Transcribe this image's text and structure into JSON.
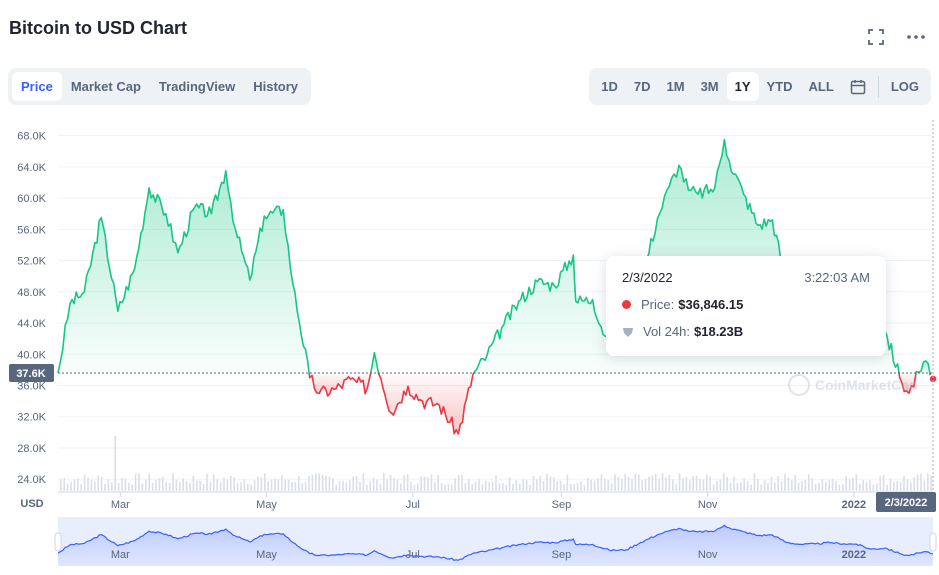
{
  "header": {
    "title": "Bitcoin to USD Chart"
  },
  "tabs": [
    {
      "label": "Price",
      "active": true
    },
    {
      "label": "Market Cap",
      "active": false
    },
    {
      "label": "TradingView",
      "active": false
    },
    {
      "label": "History",
      "active": false
    }
  ],
  "ranges": [
    {
      "label": "1D",
      "active": false
    },
    {
      "label": "7D",
      "active": false
    },
    {
      "label": "1M",
      "active": false
    },
    {
      "label": "3M",
      "active": false
    },
    {
      "label": "1Y",
      "active": true
    },
    {
      "label": "YTD",
      "active": false
    },
    {
      "label": "ALL",
      "active": false
    }
  ],
  "log_label": "LOG",
  "tooltip": {
    "date": "2/3/2022",
    "time": "3:22:03 AM",
    "price_label": "Price:",
    "price_value": "$36,846.15",
    "vol_label": "Vol 24h:",
    "vol_value": "$18.23B"
  },
  "watermark": "CoinMarketCap",
  "colors": {
    "up": "#16c784",
    "down": "#ea3943",
    "accent": "#3861fb",
    "grid": "#eff2f5"
  },
  "chart_data": {
    "type": "area",
    "y_axis_title": "USD",
    "y_ticks": [
      24000,
      28000,
      32000,
      36000,
      40000,
      44000,
      48000,
      52000,
      56000,
      60000,
      64000,
      68000
    ],
    "y_tick_labels": [
      "24.0K",
      "28.0K",
      "32.0K",
      "36.0K",
      "40.0K",
      "44.0K",
      "48.0K",
      "52.0K",
      "56.0K",
      "60.0K",
      "64.0K",
      "68.0K"
    ],
    "ylim": [
      23000,
      70000
    ],
    "x_range": [
      "2021-02-03",
      "2022-02-03"
    ],
    "x_ticks": [
      {
        "date": "2021-03-01",
        "label": "Mar"
      },
      {
        "date": "2021-05-01",
        "label": "May"
      },
      {
        "date": "2021-07-01",
        "label": "Jul"
      },
      {
        "date": "2021-09-01",
        "label": "Sep"
      },
      {
        "date": "2021-11-01",
        "label": "Nov"
      },
      {
        "date": "2022-01-01",
        "label": "2022"
      }
    ],
    "baseline": {
      "value": 37600,
      "label": "37.6K"
    },
    "current_x_label": "2/3/2022",
    "points": [
      [
        "2021-02-03",
        37600
      ],
      [
        "2021-02-08",
        46500
      ],
      [
        "2021-02-14",
        48000
      ],
      [
        "2021-02-21",
        57500
      ],
      [
        "2021-02-28",
        45500
      ],
      [
        "2021-03-07",
        51000
      ],
      [
        "2021-03-13",
        61300
      ],
      [
        "2021-03-20",
        58000
      ],
      [
        "2021-03-25",
        53000
      ],
      [
        "2021-04-01",
        58800
      ],
      [
        "2021-04-08",
        58000
      ],
      [
        "2021-04-14",
        63500
      ],
      [
        "2021-04-18",
        56000
      ],
      [
        "2021-04-24",
        49500
      ],
      [
        "2021-04-30",
        57700
      ],
      [
        "2021-05-08",
        58500
      ],
      [
        "2021-05-12",
        49000
      ],
      [
        "2021-05-19",
        37000
      ],
      [
        "2021-05-23",
        35000
      ],
      [
        "2021-05-30",
        35600
      ],
      [
        "2021-06-05",
        36800
      ],
      [
        "2021-06-12",
        35600
      ],
      [
        "2021-06-15",
        40200
      ],
      [
        "2021-06-22",
        32500
      ],
      [
        "2021-06-29",
        35900
      ],
      [
        "2021-07-05",
        34000
      ],
      [
        "2021-07-12",
        33500
      ],
      [
        "2021-07-20",
        29800
      ],
      [
        "2021-07-26",
        37300
      ],
      [
        "2021-08-01",
        39900
      ],
      [
        "2021-08-08",
        43800
      ],
      [
        "2021-08-15",
        47000
      ],
      [
        "2021-08-22",
        49300
      ],
      [
        "2021-08-29",
        48800
      ],
      [
        "2021-09-06",
        52700
      ],
      [
        "2021-09-07",
        46800
      ],
      [
        "2021-09-14",
        47000
      ],
      [
        "2021-09-21",
        40700
      ],
      [
        "2021-09-28",
        41000
      ],
      [
        "2021-10-04",
        49000
      ],
      [
        "2021-10-11",
        57300
      ],
      [
        "2021-10-16",
        61500
      ],
      [
        "2021-10-20",
        64200
      ],
      [
        "2021-10-24",
        61000
      ],
      [
        "2021-10-28",
        60500
      ],
      [
        "2021-11-04",
        61300
      ],
      [
        "2021-11-08",
        67500
      ],
      [
        "2021-11-10",
        64800
      ],
      [
        "2021-11-16",
        60500
      ],
      [
        "2021-11-22",
        56500
      ],
      [
        "2021-11-28",
        57200
      ],
      [
        "2021-12-04",
        49000
      ],
      [
        "2021-12-10",
        47000
      ],
      [
        "2021-12-16",
        47500
      ],
      [
        "2021-12-22",
        48900
      ],
      [
        "2021-12-28",
        47500
      ],
      [
        "2022-01-02",
        47300
      ],
      [
        "2022-01-08",
        41800
      ],
      [
        "2022-01-14",
        43000
      ],
      [
        "2022-01-21",
        36400
      ],
      [
        "2022-01-24",
        35000
      ],
      [
        "2022-01-28",
        37700
      ],
      [
        "2022-02-01",
        38800
      ],
      [
        "2022-02-03",
        36846
      ]
    ],
    "volume_spike_date": "2021-02-27"
  }
}
